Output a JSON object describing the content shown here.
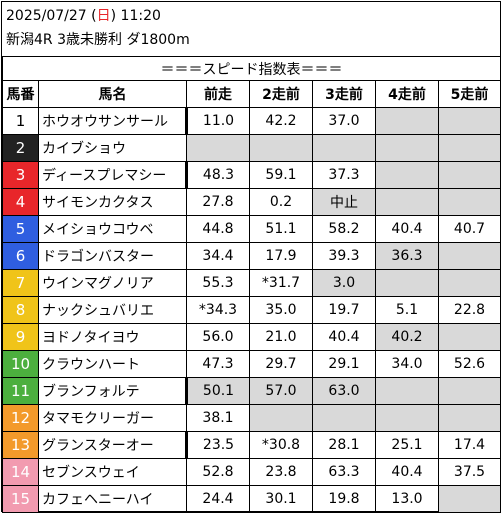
{
  "header": {
    "date": "2025/07/27",
    "weekday_open": " (",
    "weekday": "日",
    "weekday_close": ")",
    "time": "11:20",
    "race": "新潟4R 3歳未勝利 ダ1800m"
  },
  "table": {
    "title": "＝＝＝スピード指数表＝＝＝",
    "columns": [
      "馬番",
      "馬名",
      "前走",
      "2走前",
      "3走前",
      "4走前",
      "5走前"
    ],
    "rows": [
      {
        "no": "1",
        "name": "ホウオウサンサール",
        "bg": "#ffffff",
        "fg": "#000000",
        "mark": true,
        "vals": [
          "11.0",
          "42.2",
          "37.0",
          "",
          ""
        ],
        "gray": [
          false,
          false,
          false,
          true,
          true
        ]
      },
      {
        "no": "2",
        "name": "カイブショウ",
        "bg": "#222222",
        "fg": "#ffffff",
        "mark": false,
        "vals": [
          "",
          "",
          "",
          "",
          ""
        ],
        "gray": [
          true,
          true,
          true,
          true,
          true
        ]
      },
      {
        "no": "3",
        "name": "ディースプレマシー",
        "bg": "#e8262a",
        "fg": "#ffffff",
        "mark": true,
        "vals": [
          "48.3",
          "59.1",
          "37.3",
          "",
          ""
        ],
        "gray": [
          false,
          false,
          false,
          true,
          true
        ]
      },
      {
        "no": "4",
        "name": "サイモンカクタス",
        "bg": "#e8262a",
        "fg": "#ffffff",
        "mark": false,
        "vals": [
          "27.8",
          "0.2",
          "中止",
          "",
          ""
        ],
        "gray": [
          false,
          false,
          true,
          true,
          true
        ]
      },
      {
        "no": "5",
        "name": "メイショウコウベ",
        "bg": "#2f5ee0",
        "fg": "#ffffff",
        "mark": false,
        "vals": [
          "44.8",
          "51.1",
          "58.2",
          "40.4",
          "40.7"
        ],
        "gray": [
          false,
          false,
          false,
          false,
          false
        ]
      },
      {
        "no": "6",
        "name": "ドラゴンバスター",
        "bg": "#2f5ee0",
        "fg": "#ffffff",
        "mark": false,
        "vals": [
          "34.4",
          "17.9",
          "39.3",
          "36.3",
          ""
        ],
        "gray": [
          false,
          false,
          false,
          true,
          true
        ]
      },
      {
        "no": "7",
        "name": "ウインマグノリア",
        "bg": "#f0c419",
        "fg": "#ffffff",
        "mark": false,
        "vals": [
          "55.3",
          "*31.7",
          "3.0",
          "",
          ""
        ],
        "gray": [
          false,
          false,
          true,
          true,
          true
        ]
      },
      {
        "no": "8",
        "name": "ナックシュバリエ",
        "bg": "#f0c419",
        "fg": "#ffffff",
        "mark": false,
        "vals": [
          "*34.3",
          "35.0",
          "19.7",
          "5.1",
          "22.8"
        ],
        "gray": [
          false,
          false,
          false,
          false,
          false
        ]
      },
      {
        "no": "9",
        "name": "ヨドノタイヨウ",
        "bg": "#f0c419",
        "fg": "#ffffff",
        "mark": false,
        "vals": [
          "56.0",
          "21.0",
          "40.4",
          "40.2",
          ""
        ],
        "gray": [
          false,
          false,
          false,
          true,
          true
        ]
      },
      {
        "no": "10",
        "name": "クラウンハート",
        "bg": "#4caf3e",
        "fg": "#ffffff",
        "mark": false,
        "vals": [
          "47.3",
          "29.7",
          "29.1",
          "34.0",
          "52.6"
        ],
        "gray": [
          false,
          false,
          false,
          false,
          false
        ]
      },
      {
        "no": "11",
        "name": "ブランフォルテ",
        "bg": "#4caf3e",
        "fg": "#ffffff",
        "mark": true,
        "vals": [
          "50.1",
          "57.0",
          "63.0",
          "",
          ""
        ],
        "gray": [
          true,
          true,
          true,
          true,
          true
        ]
      },
      {
        "no": "12",
        "name": "タマモクリーガー",
        "bg": "#f39a2b",
        "fg": "#ffffff",
        "mark": false,
        "vals": [
          "38.1",
          "",
          "",
          "",
          ""
        ],
        "gray": [
          false,
          true,
          true,
          true,
          true
        ]
      },
      {
        "no": "13",
        "name": "グランスターオー",
        "bg": "#f39a2b",
        "fg": "#ffffff",
        "mark": true,
        "vals": [
          "23.5",
          "*30.8",
          "28.1",
          "25.1",
          "17.4"
        ],
        "gray": [
          false,
          false,
          false,
          false,
          false
        ]
      },
      {
        "no": "14",
        "name": "セブンスウェイ",
        "bg": "#f29bb0",
        "fg": "#ffffff",
        "mark": false,
        "vals": [
          "52.8",
          "23.8",
          "63.3",
          "40.4",
          "37.5"
        ],
        "gray": [
          false,
          false,
          false,
          false,
          false
        ]
      },
      {
        "no": "15",
        "name": "カフェヘニーハイ",
        "bg": "#f29bb0",
        "fg": "#ffffff",
        "mark": false,
        "vals": [
          "24.4",
          "30.1",
          "19.8",
          "13.0",
          ""
        ],
        "gray": [
          false,
          false,
          false,
          false,
          true
        ]
      }
    ]
  }
}
